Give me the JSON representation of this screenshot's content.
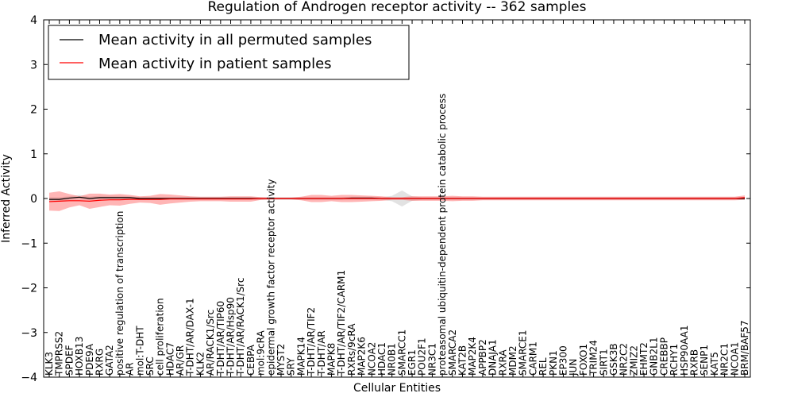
{
  "chart_data": {
    "type": "line",
    "title": "Regulation of Androgen receptor activity -- 362 samples",
    "xlabel": "Cellular Entities",
    "ylabel": "Inferred Activity",
    "ylim": [
      -4,
      4
    ],
    "yticks": [
      "4",
      "3",
      "2",
      "1",
      "0",
      "−1",
      "−2",
      "−3",
      "−4"
    ],
    "grid": false,
    "legend_position": "top-left",
    "categories": [
      "KLK3",
      "TMPRSS2",
      "SPDEF",
      "HOXB13",
      "PDE9A",
      "RXRG",
      "GATA2",
      "positive regulation of transcription",
      "AR",
      "mol:T-DHT",
      "SRC",
      "cell proliferation",
      "HDAC7",
      "AR/GR",
      "T-DHT/AR/DAX-1",
      "KLK2",
      "AR/RACK1/Src",
      "T-DHT/AR/TIP60",
      "T-DHT/AR/Hsp90",
      "T-DHT/AR/RACK1/Src",
      "CEBPA",
      "mol:9cRA",
      "epidermal growth factor receptor activity",
      "MYST2",
      "SRY",
      "MAPK14",
      "T-DHT/AR/TIF2",
      "T-DHT/AR",
      "MAPK8",
      "T-DHT/AR/TIF2/CARM1",
      "RXRs/9cRA",
      "MAP2K6",
      "NCOA2",
      "HDAC1",
      "NR0B1",
      "SMARCC1",
      "EGR1",
      "POU2F1",
      "NR3C1",
      "proteasomal ubiquitin-dependent protein catabolic process",
      "SMARCA2",
      "KAT2B",
      "MAP2K4",
      "APPBP2",
      "DNAJA1",
      "RXRA",
      "MDM2",
      "SMARCE1",
      "CARM1",
      "REL",
      "PKN1",
      "EP300",
      "JUN",
      "FOXO1",
      "TRIM24",
      "SIRT1",
      "GSK3B",
      "NR2C2",
      "ZMIZ2",
      "EHMT2",
      "GNB2L1",
      "CREBBP",
      "RCHY1",
      "HSP90AA1",
      "RXRB",
      "SENP1",
      "KAT5",
      "NR2C1",
      "NCOA1",
      "BRM/BAF57"
    ],
    "series": [
      {
        "name": "Mean activity in all permuted samples",
        "color": "#000000",
        "values": [
          -0.02,
          -0.02,
          0.01,
          0.03,
          0.0,
          0.02,
          0.02,
          0.02,
          0.02,
          0.0,
          0.0,
          0.0,
          0.0,
          0.0,
          0.0,
          0.0,
          0.0,
          0.0,
          0.0,
          0.0,
          0.0,
          0.0,
          0.0,
          0.0,
          0.0,
          0.0,
          0.0,
          0.0,
          0.0,
          0.0,
          0.01,
          0.01,
          0.01,
          0.0,
          0.0,
          0.0,
          0.0,
          0.0,
          0.0,
          0.0,
          0.0,
          0.0,
          0.0,
          0.0,
          0.0,
          0.0,
          0.0,
          0.0,
          0.0,
          0.0,
          0.0,
          0.0,
          0.0,
          0.0,
          0.0,
          0.0,
          0.0,
          0.0,
          0.0,
          0.0,
          0.0,
          0.0,
          0.0,
          0.0,
          0.0,
          0.0,
          0.0,
          0.0,
          0.0,
          0.0
        ],
        "band": [
          0.05,
          0.05,
          0.04,
          0.05,
          0.04,
          0.04,
          0.04,
          0.04,
          0.03,
          0.03,
          0.03,
          0.03,
          0.03,
          0.03,
          0.03,
          0.03,
          0.03,
          0.03,
          0.03,
          0.03,
          0.03,
          0.03,
          0.03,
          0.03,
          0.03,
          0.03,
          0.03,
          0.03,
          0.03,
          0.03,
          0.03,
          0.03,
          0.03,
          0.03,
          0.06,
          0.18,
          0.05,
          0.03,
          0.03,
          0.03,
          0.03,
          0.03,
          0.03,
          0.03,
          0.03,
          0.03,
          0.03,
          0.03,
          0.03,
          0.03,
          0.03,
          0.03,
          0.03,
          0.03,
          0.03,
          0.03,
          0.03,
          0.03,
          0.03,
          0.03,
          0.03,
          0.03,
          0.03,
          0.03,
          0.03,
          0.03,
          0.03,
          0.03,
          0.03,
          0.03
        ]
      },
      {
        "name": "Mean activity in patient samples",
        "color": "#ff0000",
        "values": [
          -0.07,
          -0.06,
          -0.05,
          -0.05,
          -0.06,
          -0.04,
          -0.03,
          -0.03,
          -0.02,
          -0.02,
          -0.02,
          -0.02,
          -0.01,
          -0.01,
          -0.01,
          -0.01,
          -0.01,
          -0.01,
          -0.01,
          -0.01,
          -0.01,
          0.0,
          0.0,
          0.0,
          0.0,
          0.0,
          0.0,
          0.0,
          0.0,
          0.0,
          0.0,
          0.0,
          0.0,
          0.0,
          0.0,
          0.0,
          0.0,
          0.0,
          0.0,
          0.0,
          0.0,
          0.0,
          0.0,
          0.0,
          0.0,
          0.0,
          0.0,
          0.0,
          0.0,
          0.0,
          0.0,
          0.0,
          0.0,
          0.0,
          0.0,
          0.0,
          0.0,
          0.0,
          0.0,
          0.0,
          0.0,
          0.0,
          0.0,
          0.0,
          0.0,
          0.0,
          0.0,
          0.0,
          0.0,
          0.02
        ],
        "band": [
          0.2,
          0.22,
          0.15,
          0.1,
          0.17,
          0.15,
          0.12,
          0.13,
          0.1,
          0.07,
          0.08,
          0.12,
          0.1,
          0.08,
          0.06,
          0.05,
          0.05,
          0.05,
          0.06,
          0.06,
          0.06,
          0.03,
          0.02,
          0.02,
          0.02,
          0.04,
          0.08,
          0.08,
          0.06,
          0.08,
          0.08,
          0.07,
          0.06,
          0.05,
          0.03,
          0.03,
          0.05,
          0.05,
          0.05,
          0.05,
          0.06,
          0.05,
          0.05,
          0.04,
          0.04,
          0.04,
          0.04,
          0.04,
          0.04,
          0.04,
          0.04,
          0.04,
          0.04,
          0.04,
          0.04,
          0.04,
          0.04,
          0.04,
          0.04,
          0.04,
          0.04,
          0.04,
          0.04,
          0.04,
          0.04,
          0.04,
          0.04,
          0.04,
          0.04,
          0.05
        ]
      }
    ]
  }
}
